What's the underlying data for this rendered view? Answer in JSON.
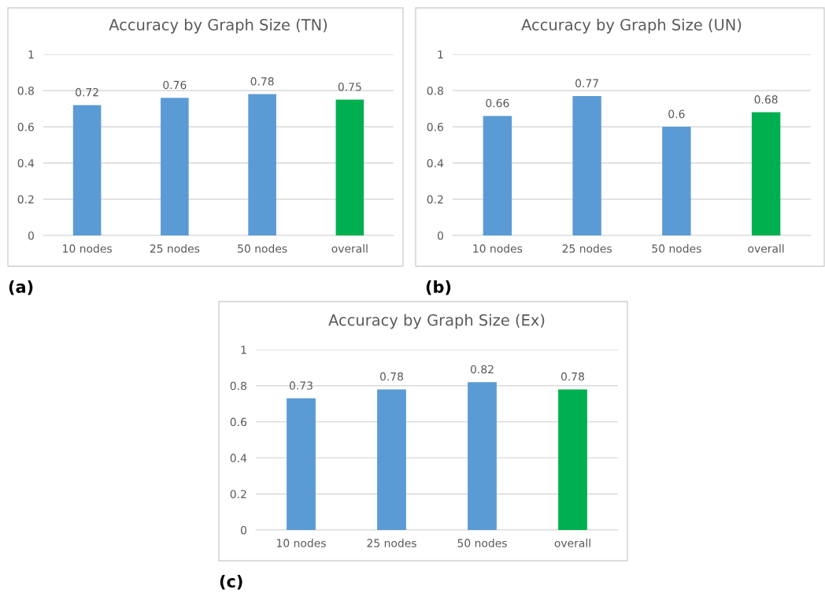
{
  "chart_data": [
    {
      "type": "bar",
      "title": "Accuracy by Graph Size (TN)",
      "categories": [
        "10 nodes",
        "25 nodes",
        "50 nodes",
        "overall"
      ],
      "values": [
        0.72,
        0.76,
        0.78,
        0.75
      ],
      "colors": [
        "#5b9bd5",
        "#5b9bd5",
        "#5b9bd5",
        "#00b050"
      ],
      "ylim": [
        0,
        1
      ],
      "yticks": [
        0,
        0.2,
        0.4,
        0.6,
        0.8,
        1
      ],
      "grid": "y",
      "data_labels": true,
      "annotations": [
        "(a)"
      ]
    },
    {
      "type": "bar",
      "title": "Accuracy by Graph Size (UN)",
      "categories": [
        "10 nodes",
        "25 nodes",
        "50 nodes",
        "overall"
      ],
      "values": [
        0.66,
        0.77,
        0.6,
        0.68
      ],
      "colors": [
        "#5b9bd5",
        "#5b9bd5",
        "#5b9bd5",
        "#00b050"
      ],
      "ylim": [
        0,
        1
      ],
      "yticks": [
        0,
        0.2,
        0.4,
        0.6,
        0.8,
        1
      ],
      "grid": "y",
      "data_labels": true,
      "annotations": [
        "(b)"
      ]
    },
    {
      "type": "bar",
      "title": "Accuracy by Graph Size (Ex)",
      "categories": [
        "10 nodes",
        "25 nodes",
        "50 nodes",
        "overall"
      ],
      "values": [
        0.73,
        0.78,
        0.82,
        0.78
      ],
      "colors": [
        "#5b9bd5",
        "#5b9bd5",
        "#5b9bd5",
        "#00b050"
      ],
      "ylim": [
        0,
        1
      ],
      "yticks": [
        0,
        0.2,
        0.4,
        0.6,
        0.8,
        1
      ],
      "grid": "y",
      "data_labels": true,
      "annotations": [
        "(c)"
      ]
    }
  ]
}
